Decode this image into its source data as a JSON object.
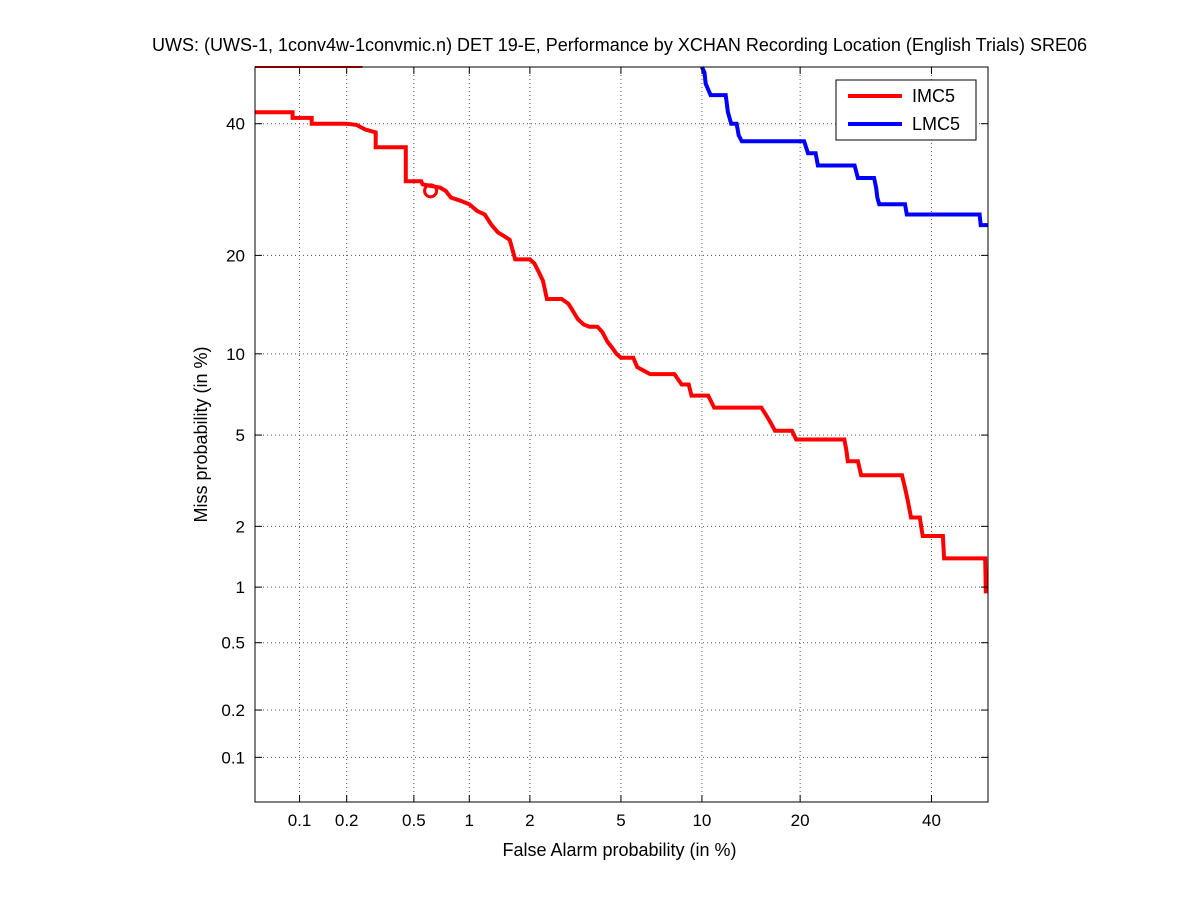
{
  "chart_data": {
    "type": "line",
    "title": "UWS: (UWS-1, 1conv4w-1convmic.n) DET 19-E,  Performance by XCHAN Recording Location (English Trials) SRE06",
    "xlabel": "False Alarm probability (in %)",
    "ylabel": "Miss probability (in %)",
    "scale": "normal-deviate (probit) on both axes",
    "xlim": [
      0.05,
      50
    ],
    "ylim": [
      0.05,
      50
    ],
    "grid": true,
    "legend_position": "top-right",
    "x_ticks": [
      {
        "value": 0.1,
        "label": "0.1"
      },
      {
        "value": 0.2,
        "label": "0.2"
      },
      {
        "value": 0.5,
        "label": "0.5"
      },
      {
        "value": 1,
        "label": "1"
      },
      {
        "value": 2,
        "label": "2"
      },
      {
        "value": 5,
        "label": "5"
      },
      {
        "value": 10,
        "label": "10"
      },
      {
        "value": 20,
        "label": "20"
      },
      {
        "value": 40,
        "label": "40"
      }
    ],
    "y_ticks": [
      {
        "value": 0.1,
        "label": "0.1"
      },
      {
        "value": 0.2,
        "label": "0.2"
      },
      {
        "value": 0.5,
        "label": "0.5"
      },
      {
        "value": 1,
        "label": "1"
      },
      {
        "value": 2,
        "label": "2"
      },
      {
        "value": 5,
        "label": "5"
      },
      {
        "value": 10,
        "label": "10"
      },
      {
        "value": 20,
        "label": "20"
      },
      {
        "value": 40,
        "label": "40"
      }
    ],
    "series": [
      {
        "name": "IMC5",
        "color": "#ff0000",
        "points": [
          [
            0.05,
            42
          ],
          [
            0.09,
            42
          ],
          [
            0.09,
            41
          ],
          [
            0.12,
            41
          ],
          [
            0.12,
            40
          ],
          [
            0.2,
            40
          ],
          [
            0.23,
            39.8
          ],
          [
            0.26,
            39
          ],
          [
            0.3,
            38.5
          ],
          [
            0.3,
            36
          ],
          [
            0.45,
            36
          ],
          [
            0.45,
            30.5
          ],
          [
            0.55,
            30.5
          ],
          [
            0.56,
            30
          ],
          [
            0.7,
            29.5
          ],
          [
            0.75,
            29
          ],
          [
            0.8,
            28
          ],
          [
            0.9,
            27.5
          ],
          [
            1.0,
            27
          ],
          [
            1.1,
            26
          ],
          [
            1.2,
            25.5
          ],
          [
            1.3,
            24
          ],
          [
            1.4,
            23
          ],
          [
            1.5,
            22.5
          ],
          [
            1.6,
            22
          ],
          [
            1.7,
            19.5
          ],
          [
            2.0,
            19.5
          ],
          [
            2.1,
            19
          ],
          [
            2.2,
            18
          ],
          [
            2.3,
            17
          ],
          [
            2.35,
            16
          ],
          [
            2.4,
            15
          ],
          [
            2.8,
            15
          ],
          [
            3.0,
            14.5
          ],
          [
            3.1,
            14
          ],
          [
            3.3,
            13
          ],
          [
            3.5,
            12.5
          ],
          [
            3.7,
            12.3
          ],
          [
            4.0,
            12.3
          ],
          [
            4.2,
            11.8
          ],
          [
            4.4,
            11
          ],
          [
            4.6,
            10.5
          ],
          [
            4.8,
            10
          ],
          [
            5.0,
            9.7
          ],
          [
            5.6,
            9.7
          ],
          [
            5.8,
            9
          ],
          [
            6.5,
            8.5
          ],
          [
            8.0,
            8.5
          ],
          [
            8.5,
            7.8
          ],
          [
            9.0,
            7.8
          ],
          [
            9.2,
            7.1
          ],
          [
            10.5,
            7.1
          ],
          [
            11.0,
            6.4
          ],
          [
            15.5,
            6.4
          ],
          [
            16.0,
            6.0
          ],
          [
            16.5,
            5.6
          ],
          [
            17.0,
            5.2
          ],
          [
            19.0,
            5.2
          ],
          [
            19.5,
            4.8
          ],
          [
            26.0,
            4.8
          ],
          [
            26.3,
            4.3
          ],
          [
            26.5,
            3.9
          ],
          [
            28.0,
            3.9
          ],
          [
            28.5,
            3.4
          ],
          [
            35.0,
            3.4
          ],
          [
            35.5,
            3.0
          ],
          [
            36.0,
            2.6
          ],
          [
            36.5,
            2.2
          ],
          [
            38.0,
            2.2
          ],
          [
            38.5,
            1.8
          ],
          [
            42.0,
            1.8
          ],
          [
            42.2,
            1.4
          ],
          [
            49.5,
            1.4
          ],
          [
            49.6,
            0.95
          ],
          [
            50,
            0.95
          ]
        ],
        "extra_segment": [
          [
            0.05,
            50
          ],
          [
            0.25,
            50
          ]
        ],
        "marker": {
          "x": 0.62,
          "y": 29,
          "shape": "circle"
        }
      },
      {
        "name": "LMC5",
        "color": "#0000ff",
        "points": [
          [
            10.0,
            50
          ],
          [
            10.2,
            49
          ],
          [
            10.3,
            47
          ],
          [
            10.5,
            46
          ],
          [
            10.7,
            45
          ],
          [
            12.0,
            45
          ],
          [
            12.2,
            42
          ],
          [
            12.5,
            40
          ],
          [
            13.0,
            40
          ],
          [
            13.2,
            38
          ],
          [
            13.5,
            37
          ],
          [
            20.5,
            37
          ],
          [
            21.0,
            35
          ],
          [
            22.0,
            35
          ],
          [
            22.3,
            33
          ],
          [
            27.5,
            33
          ],
          [
            28.0,
            31
          ],
          [
            30.5,
            31
          ],
          [
            30.8,
            29.5
          ],
          [
            31.0,
            28
          ],
          [
            31.3,
            27
          ],
          [
            35.5,
            27
          ],
          [
            35.8,
            25.5
          ],
          [
            48.5,
            25.5
          ],
          [
            48.7,
            24
          ],
          [
            50,
            24
          ]
        ]
      }
    ]
  }
}
